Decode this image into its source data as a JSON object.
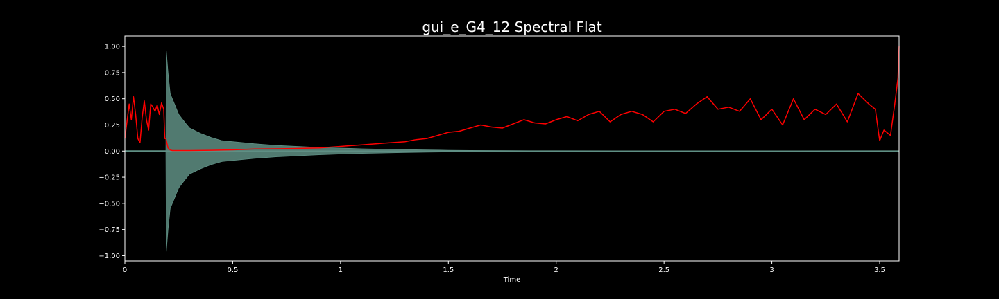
{
  "chart_data": {
    "type": "line",
    "title": "gui_e_G4_12 Spectral Flat",
    "xlabel": "Time",
    "ylabel": "",
    "xlim": [
      0,
      3.59
    ],
    "ylim": [
      -1.05,
      1.1
    ],
    "x_ticks": [
      0,
      0.5,
      1,
      1.5,
      2,
      2.5,
      3,
      3.5
    ],
    "x_tick_labels": [
      "0",
      "0.5",
      "1",
      "1.5",
      "2",
      "2.5",
      "3",
      "3.5"
    ],
    "y_ticks": [
      -1,
      -0.75,
      -0.5,
      -0.25,
      0,
      0.25,
      0.5,
      0.75,
      1
    ],
    "y_tick_labels": [
      "−1.00",
      "−0.75",
      "−0.50",
      "−0.25",
      "0.00",
      "0.25",
      "0.50",
      "0.75",
      "1.00"
    ],
    "grid": false,
    "legend": "none",
    "colors": {
      "background": "#000000",
      "axes": "#ffffff",
      "waveform": "#5f8f84",
      "flatness": "#ff0000"
    },
    "series": [
      {
        "kind": "waveform-envelope",
        "color": "#5f8f84",
        "x": [
          0,
          0.19,
          0.192,
          0.2,
          0.21,
          0.23,
          0.25,
          0.28,
          0.3,
          0.35,
          0.4,
          0.45,
          0.5,
          0.6,
          0.7,
          0.8,
          0.9,
          1.0,
          1.1,
          1.2,
          1.3,
          1.4,
          1.5,
          1.6,
          1.8,
          2.0,
          2.5,
          3.0,
          3.5,
          3.59
        ],
        "upper": [
          0.004,
          0.004,
          0.96,
          0.75,
          0.55,
          0.45,
          0.35,
          0.27,
          0.22,
          0.17,
          0.13,
          0.1,
          0.09,
          0.07,
          0.055,
          0.045,
          0.035,
          0.028,
          0.022,
          0.018,
          0.014,
          0.011,
          0.008,
          0.006,
          0.004,
          0.003,
          0.002,
          0.002,
          0.003,
          0.003
        ],
        "lower": [
          -0.004,
          -0.004,
          -0.96,
          -0.75,
          -0.55,
          -0.45,
          -0.35,
          -0.27,
          -0.22,
          -0.17,
          -0.13,
          -0.1,
          -0.09,
          -0.07,
          -0.055,
          -0.045,
          -0.035,
          -0.028,
          -0.022,
          -0.018,
          -0.014,
          -0.011,
          -0.008,
          -0.006,
          -0.004,
          -0.003,
          -0.002,
          -0.002,
          -0.003,
          -0.003
        ]
      },
      {
        "kind": "line",
        "color": "#ff0000",
        "x": [
          0.0,
          0.02,
          0.03,
          0.04,
          0.05,
          0.06,
          0.07,
          0.08,
          0.09,
          0.1,
          0.11,
          0.12,
          0.13,
          0.14,
          0.15,
          0.16,
          0.17,
          0.18,
          0.185,
          0.19,
          0.2,
          0.21,
          0.22,
          0.25,
          0.3,
          0.4,
          0.5,
          0.6,
          0.7,
          0.8,
          0.9,
          1.0,
          1.1,
          1.2,
          1.3,
          1.35,
          1.4,
          1.45,
          1.5,
          1.55,
          1.6,
          1.65,
          1.7,
          1.75,
          1.8,
          1.85,
          1.9,
          1.95,
          2.0,
          2.05,
          2.1,
          2.15,
          2.2,
          2.25,
          2.3,
          2.35,
          2.4,
          2.45,
          2.5,
          2.55,
          2.6,
          2.65,
          2.7,
          2.75,
          2.8,
          2.85,
          2.9,
          2.95,
          3.0,
          3.05,
          3.1,
          3.15,
          3.2,
          3.25,
          3.3,
          3.35,
          3.4,
          3.45,
          3.48,
          3.5,
          3.52,
          3.55,
          3.57,
          3.585,
          3.59
        ],
        "y": [
          0.12,
          0.45,
          0.3,
          0.52,
          0.35,
          0.12,
          0.08,
          0.32,
          0.48,
          0.3,
          0.2,
          0.45,
          0.42,
          0.38,
          0.44,
          0.35,
          0.46,
          0.4,
          0.12,
          0.12,
          0.03,
          0.01,
          0.005,
          0.005,
          0.005,
          0.008,
          0.012,
          0.02,
          0.022,
          0.025,
          0.03,
          0.045,
          0.06,
          0.075,
          0.09,
          0.11,
          0.12,
          0.15,
          0.18,
          0.19,
          0.22,
          0.25,
          0.23,
          0.22,
          0.26,
          0.3,
          0.27,
          0.26,
          0.3,
          0.33,
          0.29,
          0.35,
          0.38,
          0.28,
          0.35,
          0.38,
          0.35,
          0.28,
          0.38,
          0.4,
          0.36,
          0.45,
          0.52,
          0.4,
          0.42,
          0.38,
          0.5,
          0.3,
          0.4,
          0.25,
          0.5,
          0.3,
          0.4,
          0.35,
          0.45,
          0.28,
          0.55,
          0.45,
          0.4,
          0.1,
          0.2,
          0.15,
          0.45,
          0.7,
          1.0
        ]
      }
    ]
  }
}
